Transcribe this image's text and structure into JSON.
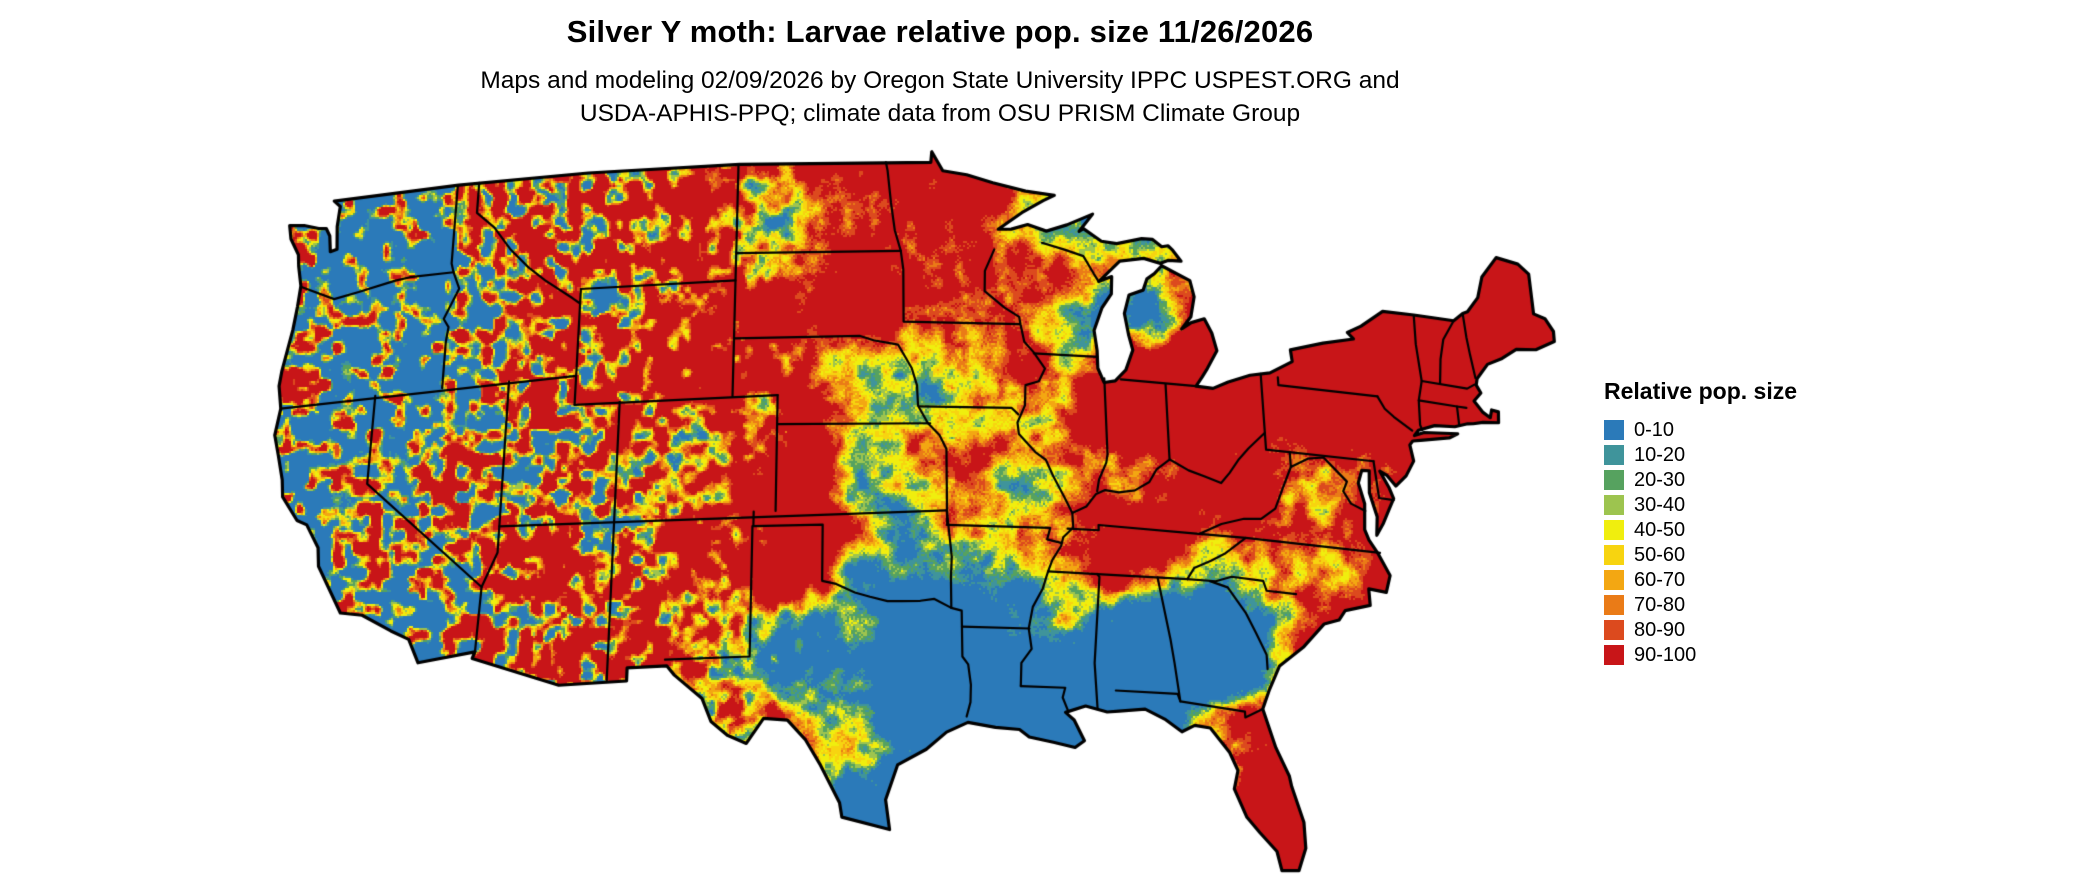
{
  "header": {
    "title": "Silver Y moth: Larvae relative pop. size 11/26/2026",
    "subtitle_line1": "Maps and modeling 02/09/2026 by Oregon State University IPPC USPEST.ORG and",
    "subtitle_line2": "USDA-APHIS-PPQ; climate data from OSU PRISM Climate Group"
  },
  "map": {
    "region_label": "Contiguous United States",
    "background_color": "#ffffff",
    "border_color": "#000000"
  },
  "legend": {
    "title": "Relative pop. size",
    "items": [
      {
        "label": "0-10",
        "color": "#2b7ab9"
      },
      {
        "label": "10-20",
        "color": "#3f949b"
      },
      {
        "label": "20-30",
        "color": "#56a25f"
      },
      {
        "label": "30-40",
        "color": "#9dc44f"
      },
      {
        "label": "40-50",
        "color": "#f0ee0e"
      },
      {
        "label": "50-60",
        "color": "#f7d410"
      },
      {
        "label": "60-70",
        "color": "#f3a712"
      },
      {
        "label": "70-80",
        "color": "#ea7b17"
      },
      {
        "label": "80-90",
        "color": "#dc4a1e"
      },
      {
        "label": "90-100",
        "color": "#c81518"
      }
    ]
  }
}
